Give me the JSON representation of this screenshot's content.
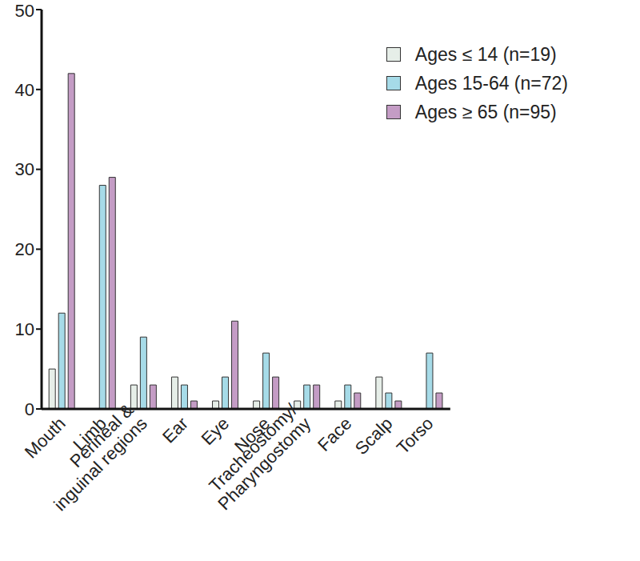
{
  "chart_data": {
    "type": "bar",
    "categories": [
      "Mouth",
      "Limb",
      "Perineal & inguinal regions",
      "Ear",
      "Eye",
      "Nose",
      "Tracheostomy/Pharyngostomy",
      "Face",
      "Scalp",
      "Torso"
    ],
    "series": [
      {
        "name": "Ages ≤ 14 (n=19)",
        "color": "#e6eee8",
        "values": [
          5,
          0,
          3,
          4,
          1,
          1,
          1,
          1,
          4,
          0
        ]
      },
      {
        "name": "Ages 15-64 (n=72)",
        "color": "#a6dbe8",
        "values": [
          12,
          28,
          9,
          3,
          4,
          7,
          3,
          3,
          2,
          7
        ]
      },
      {
        "name": "Ages ≥ 65 (n=95)",
        "color": "#c49cc5",
        "values": [
          42,
          29,
          3,
          1,
          11,
          4,
          3,
          2,
          1,
          2
        ]
      }
    ],
    "ylim": [
      0,
      50
    ],
    "yticks": [
      0,
      10,
      20,
      30,
      40,
      50
    ],
    "grid": false,
    "legend": "upper right"
  }
}
